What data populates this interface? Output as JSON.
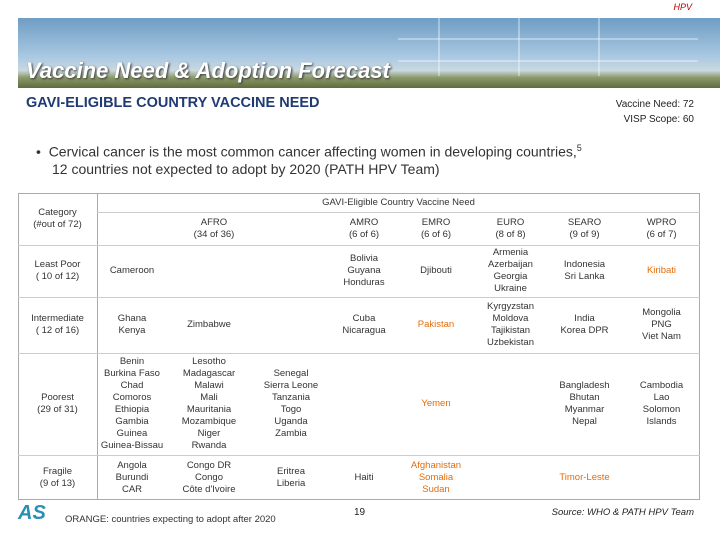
{
  "corner_label": "HPV",
  "header": {
    "title": "Vaccine Need & Adoption Forecast",
    "subtitle": "GAVI-ELIGIBLE COUNTRY VACCINE NEED",
    "stats": [
      "Vaccine Need: 72",
      "VISP Scope: 60"
    ]
  },
  "bullet": {
    "line1": "Cervical cancer is the most common cancer affecting women in developing countries,",
    "superscript": "5",
    "line2": "12 countries not expected to adopt by 2020 (PATH HPV Team)"
  },
  "table": {
    "super_header": "GAVI-Eligible Country Vaccine Need",
    "category_header": [
      "Category",
      "(#out of 72)"
    ],
    "columns": [
      {
        "name": "AFRO",
        "count": "(34 of 36)"
      },
      {
        "name": "AMRO",
        "count": "(6 of 6)"
      },
      {
        "name": "EMRO",
        "count": "(6 of 6)"
      },
      {
        "name": "EURO",
        "count": "(8 of 8)"
      },
      {
        "name": "SEARO",
        "count": "(9 of 9)"
      },
      {
        "name": "WPRO",
        "count": "(6 of 7)"
      }
    ],
    "rows": [
      {
        "label": [
          "Least Poor",
          "( 10 of 12)"
        ],
        "cells": [
          {
            "names": [
              "Cameroon"
            ]
          },
          {
            "names": []
          },
          {
            "names": []
          },
          {
            "names": [
              "Bolivia",
              "Guyana",
              "Honduras"
            ]
          },
          {
            "names": [
              "Djibouti"
            ]
          },
          {
            "names": [
              "Armenia",
              "Azerbaijan",
              "Georgia",
              "Ukraine"
            ]
          },
          {
            "names": [
              "Indonesia",
              "Sri Lanka"
            ]
          },
          {
            "names": [
              "Kiribati"
            ],
            "highlight": true
          }
        ]
      },
      {
        "label": [
          "Intermediate",
          "( 12 of 16)"
        ],
        "cells": [
          {
            "names": [
              "Ghana",
              "Kenya"
            ]
          },
          {
            "names": [
              "Zimbabwe"
            ]
          },
          {
            "names": []
          },
          {
            "names": [
              "Cuba",
              "Nicaragua"
            ]
          },
          {
            "names": [
              "Pakistan"
            ],
            "highlight": true
          },
          {
            "names": [
              "Kyrgyzstan",
              "Moldova",
              "Tajikistan",
              "Uzbekistan"
            ]
          },
          {
            "names": [
              "India",
              "Korea DPR"
            ]
          },
          {
            "names": [
              "Mongolia",
              "PNG",
              "Viet Nam"
            ]
          }
        ]
      },
      {
        "label": [
          "Poorest",
          "(29 of 31)"
        ],
        "cells": [
          {
            "names": [
              "Benin",
              "Burkina Faso",
              "Chad",
              "Comoros",
              "Ethiopia",
              "Gambia",
              "Guinea",
              "Guinea-Bissau"
            ]
          },
          {
            "names": [
              "Lesotho",
              "Madagascar",
              "Malawi",
              "Mali",
              "Mauritania",
              "Mozambique",
              "Niger",
              "Rwanda"
            ]
          },
          {
            "names": [
              "Senegal",
              "Sierra Leone",
              "Tanzania",
              "Togo",
              "Uganda",
              "Zambia"
            ]
          },
          {
            "names": []
          },
          {
            "names": [
              "Yemen"
            ],
            "highlight": true
          },
          {
            "names": []
          },
          {
            "names": [
              "Bangladesh",
              "Bhutan",
              "Myanmar",
              "Nepal"
            ]
          },
          {
            "names": [
              "Cambodia",
              "Lao",
              "Solomon",
              "Islands"
            ]
          }
        ]
      },
      {
        "label": [
          "Fragile",
          "(9 of 13)"
        ],
        "cells": [
          {
            "names": [
              "Angola",
              "Burundi",
              "CAR"
            ]
          },
          {
            "names": [
              "Congo DR",
              "Congo",
              "Côte d'Ivoire"
            ]
          },
          {
            "names": [
              "Eritrea",
              "Liberia"
            ]
          },
          {
            "names": [
              "Haiti"
            ]
          },
          {
            "names": [
              "Afghanistan",
              "Somalia",
              "Sudan"
            ],
            "highlight": true
          },
          {
            "names": []
          },
          {
            "names": [
              "Timor-Leste"
            ],
            "highlight": true
          },
          {
            "names": []
          }
        ]
      }
    ]
  },
  "footer": {
    "logo": "AS",
    "legend_note": "ORANGE: countries expecting to adopt after 2020",
    "page_number": "19",
    "source": "Source: WHO & PATH HPV Team"
  }
}
